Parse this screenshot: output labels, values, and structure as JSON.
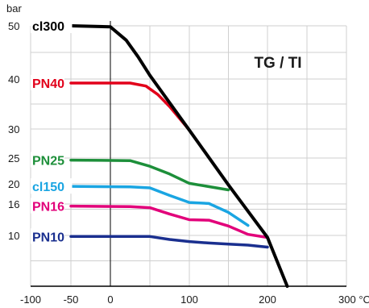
{
  "chart_data": {
    "type": "line",
    "title": "TG / TI",
    "xlabel": "",
    "ylabel": "",
    "x_unit": "°C",
    "y_unit": "bar",
    "xlim": [
      -100,
      300
    ],
    "ylim": [
      0,
      50
    ],
    "grid": true,
    "x_ticks": [
      -100,
      -50,
      0,
      100,
      200,
      300
    ],
    "x_tick_labels": [
      "-100",
      "-50",
      "0",
      "100",
      "200",
      "300"
    ],
    "y_ticks": [
      10,
      16,
      20,
      25,
      30,
      40,
      50
    ],
    "y_tick_labels": [
      "10",
      "16",
      "20",
      "25",
      "30",
      "40",
      "50"
    ],
    "series": [
      {
        "name": "cl300",
        "color": "#000000",
        "x": [
          -50,
          0,
          20,
          35,
          50,
          100,
          150,
          200,
          225
        ],
        "y": [
          50,
          49.8,
          47.3,
          44.2,
          40.7,
          29.8,
          19.8,
          9.6,
          0
        ]
      },
      {
        "name": "PN40",
        "color": "#e2001a",
        "x": [
          -50,
          25,
          45,
          60,
          75,
          100
        ],
        "y": [
          39.2,
          39.2,
          38.6,
          36.9,
          34.5,
          29.8
        ]
      },
      {
        "name": "PN25",
        "color": "#1d8f3a",
        "x": [
          -50,
          25,
          50,
          75,
          100,
          150
        ],
        "y": [
          24.6,
          24.5,
          23.4,
          21.9,
          20.1,
          18.8
        ]
      },
      {
        "name": "cl150",
        "color": "#1aa5e2",
        "x": [
          -50,
          25,
          50,
          75,
          100,
          125,
          150,
          175
        ],
        "y": [
          19.5,
          19.4,
          19.2,
          17.7,
          16.3,
          16.1,
          14.4,
          11.9
        ]
      },
      {
        "name": "PN16",
        "color": "#e2007a",
        "x": [
          -50,
          25,
          50,
          75,
          100,
          125,
          150,
          175,
          200
        ],
        "y": [
          15.6,
          15.5,
          15.3,
          14.1,
          13.0,
          12.9,
          11.8,
          10.2,
          9.6
        ]
      },
      {
        "name": "PN10",
        "color": "#1a2f8f",
        "x": [
          -50,
          50,
          75,
          100,
          125,
          150,
          175,
          200
        ],
        "y": [
          9.8,
          9.8,
          9.2,
          8.8,
          8.5,
          8.3,
          8.1,
          7.7
        ]
      }
    ]
  }
}
